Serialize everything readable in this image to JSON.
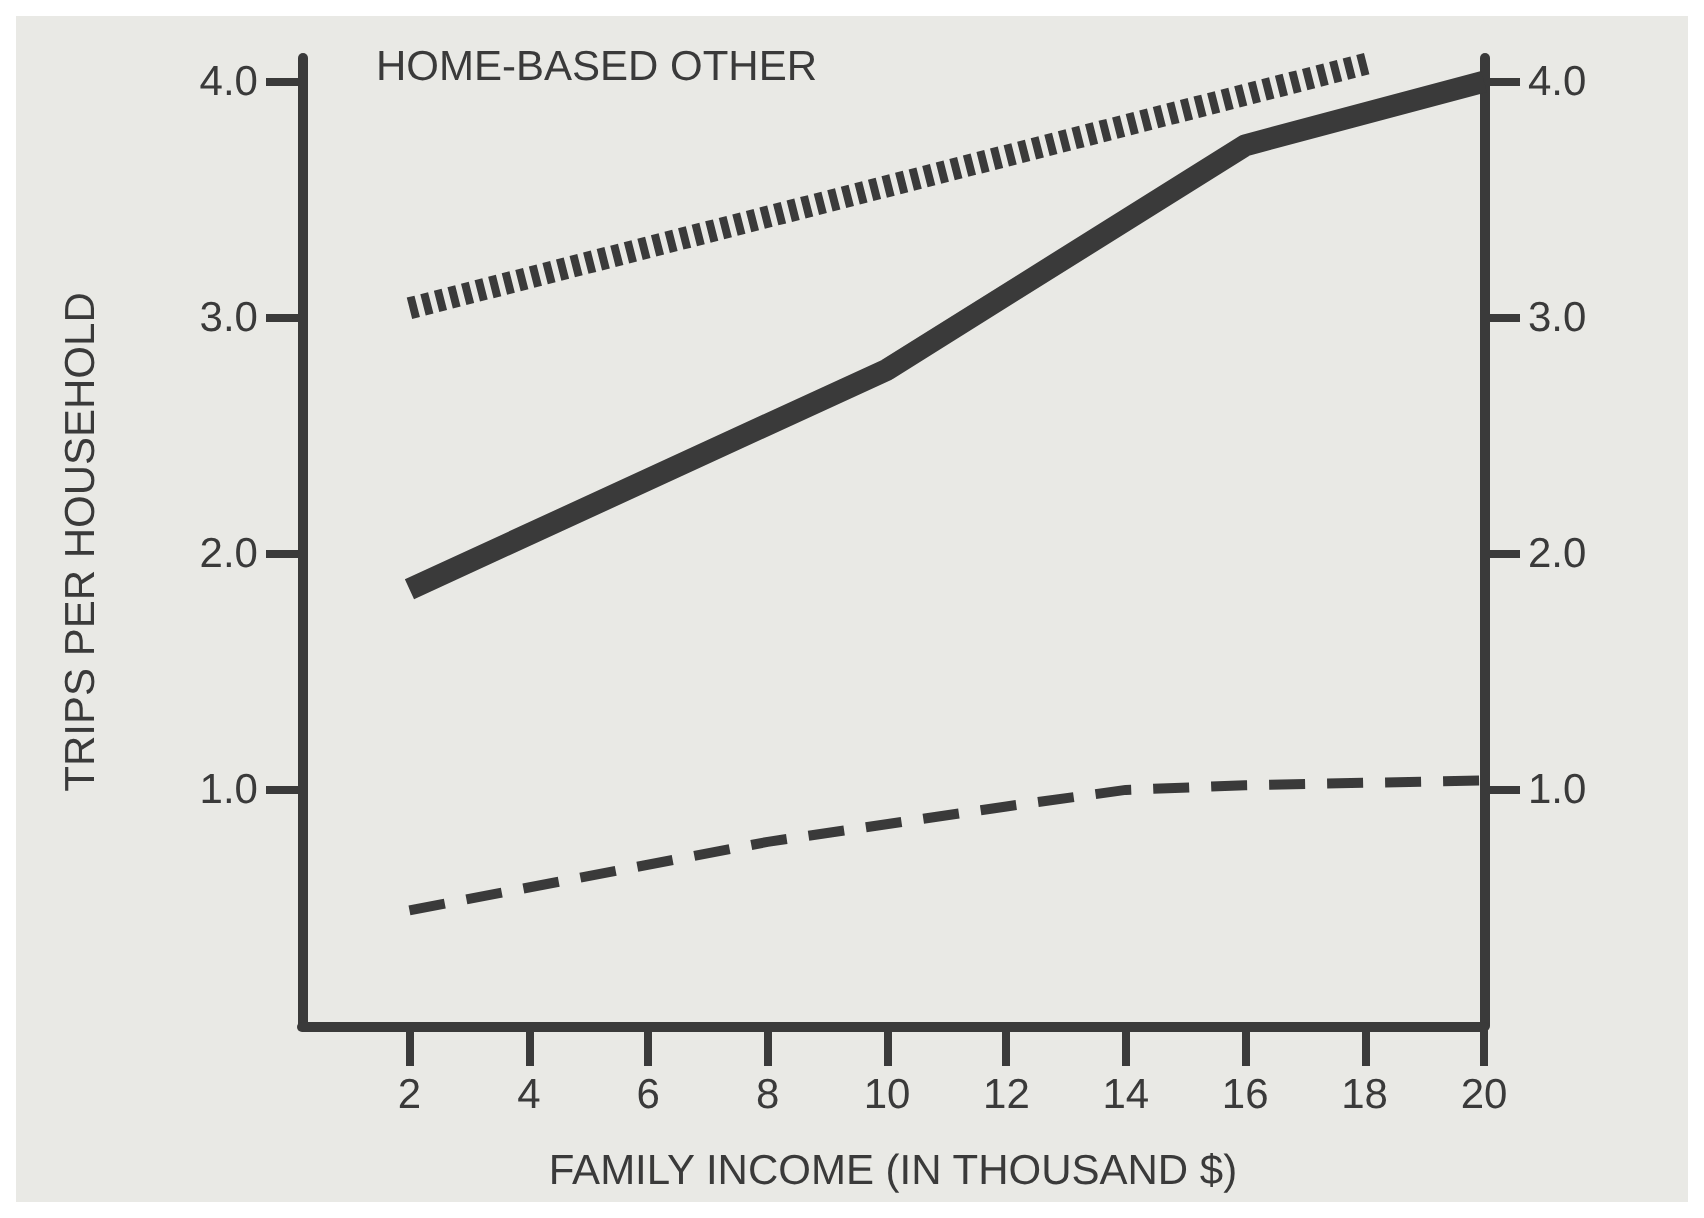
{
  "chart_data": {
    "type": "line",
    "title": "HOME-BASED OTHER",
    "xlabel": "FAMILY INCOME (IN THOUSAND $)",
    "ylabel": "TRIPS PER HOUSEHOLD",
    "xlim": [
      0.2,
      20
    ],
    "xticks": [
      2,
      4,
      6,
      8,
      10,
      12,
      14,
      16,
      18,
      20
    ],
    "ylim": [
      0,
      4.1
    ],
    "yticks": [
      {
        "value": 1,
        "label": "1.0"
      },
      {
        "value": 2,
        "label": "2.0"
      },
      {
        "value": 3,
        "label": "3.0"
      },
      {
        "value": 4,
        "label": "4.0"
      }
    ],
    "y2lim": [
      0,
      4.1
    ],
    "y2ticks": [
      {
        "value": 1,
        "label": "1.0"
      },
      {
        "value": 2,
        "label": "2.0"
      },
      {
        "value": 3,
        "label": "3.0"
      },
      {
        "value": 4,
        "label": "4.0"
      }
    ],
    "marker": "none",
    "series": [
      {
        "color": "#3a3a3a",
        "line_style": "dotted",
        "x": [
          2,
          18.1
        ],
        "values": [
          3.04,
          4.08
        ]
      },
      {
        "color": "#3a3a3a",
        "line_style": "solid",
        "x": [
          2,
          10,
          16,
          20
        ],
        "values": [
          1.85,
          2.78,
          3.73,
          4.0
        ]
      },
      {
        "color": "#3a3a3a",
        "line_style": "dashed",
        "x": [
          2,
          8,
          12,
          14,
          16,
          20
        ],
        "values": [
          0.49,
          0.78,
          0.93,
          1.0,
          1.02,
          1.04
        ]
      }
    ]
  }
}
